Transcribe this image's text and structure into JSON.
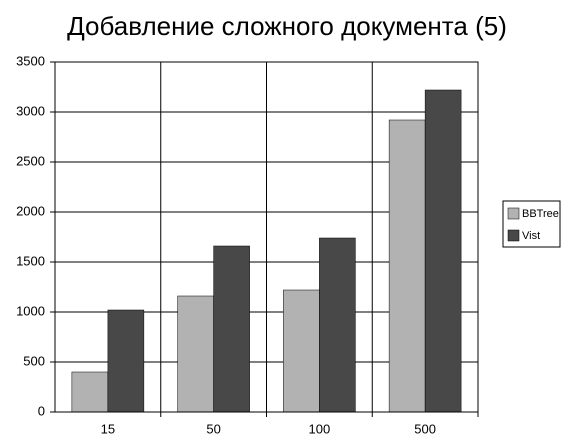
{
  "chart_data": {
    "type": "bar",
    "title": "Добавление сложного документа (5)",
    "categories": [
      "15",
      "50",
      "100",
      "500"
    ],
    "series": [
      {
        "name": "BBTree",
        "color": "#b2b2b2",
        "values": [
          400,
          1160,
          1220,
          2920
        ]
      },
      {
        "name": "Vist",
        "color": "#484848",
        "values": [
          1020,
          1660,
          1740,
          3220
        ]
      }
    ],
    "ylim": [
      0,
      3500
    ],
    "yticks": [
      0,
      500,
      1000,
      1500,
      2000,
      2500,
      3000,
      3500
    ],
    "grid": true,
    "legend": "right"
  }
}
